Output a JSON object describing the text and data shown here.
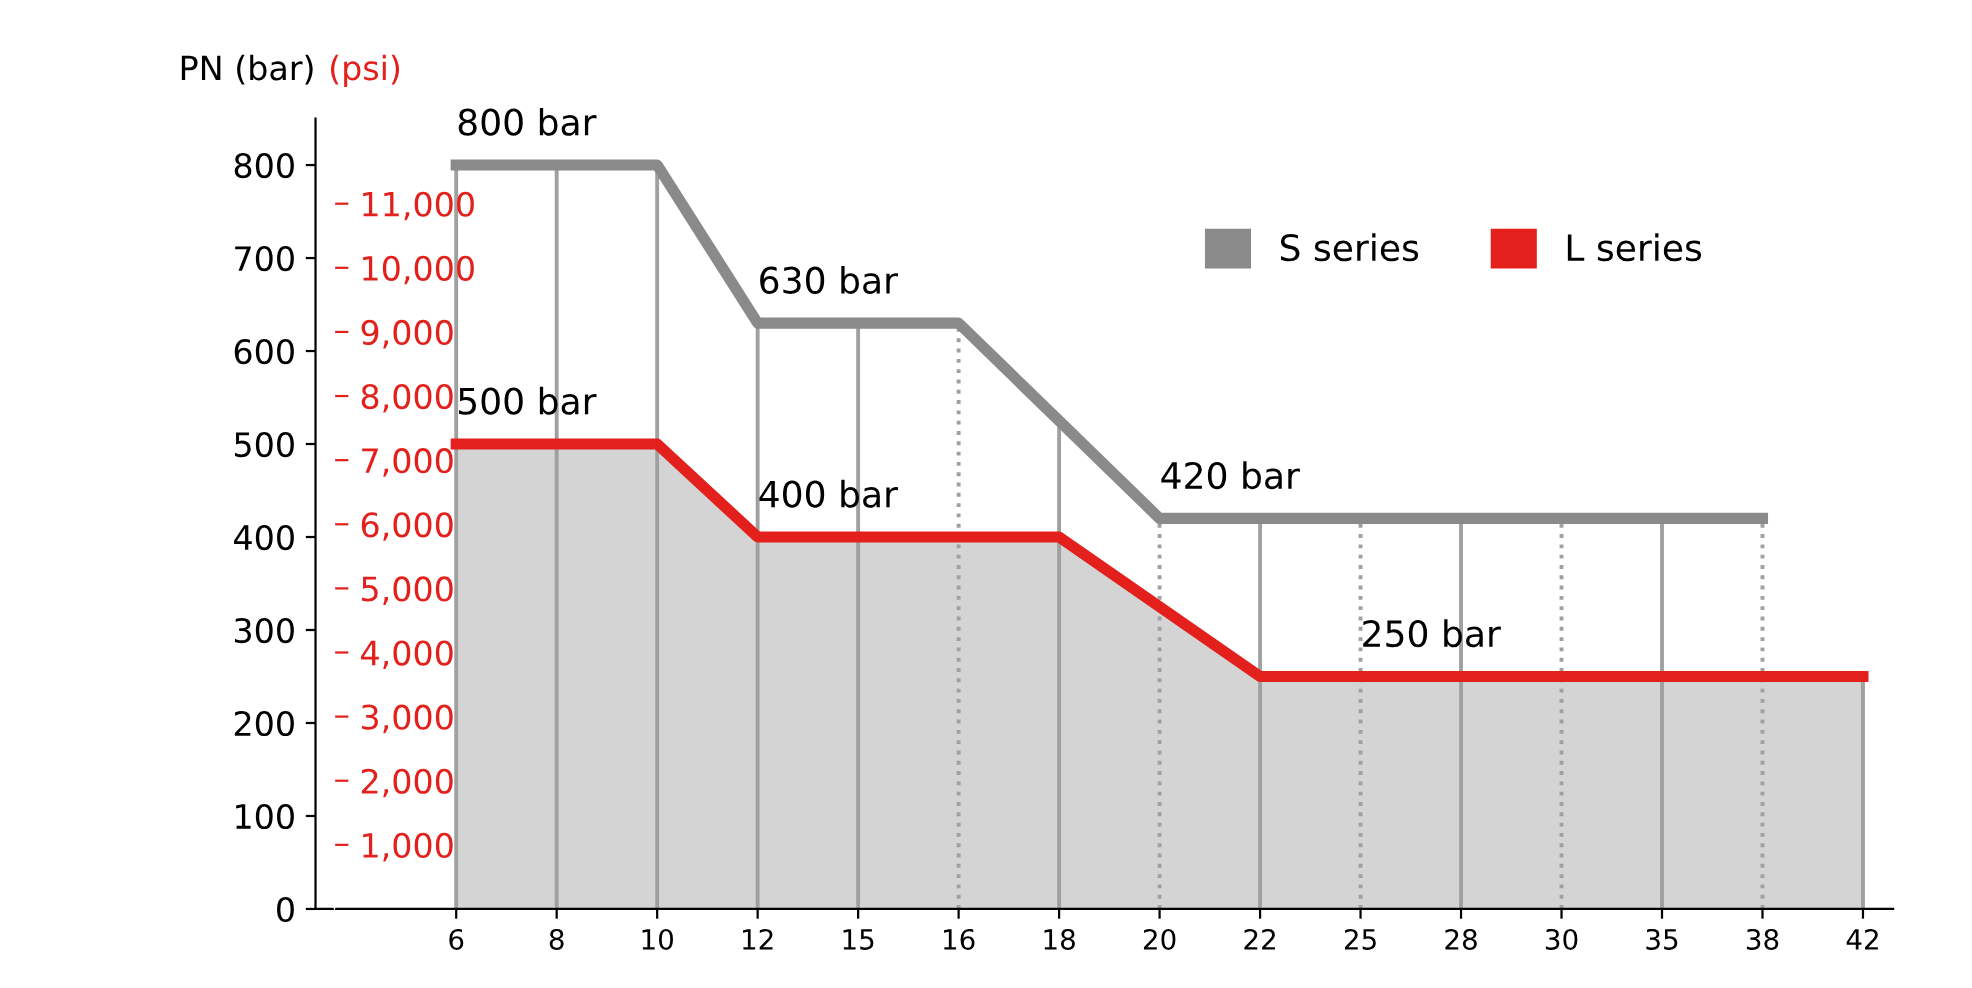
{
  "chart_data": {
    "type": "area",
    "ylabel": "PN (bar)",
    "y2label": "(psi)",
    "categories": [
      "6",
      "8",
      "10",
      "12",
      "15",
      "16",
      "18",
      "20",
      "22",
      "25",
      "28",
      "30",
      "35",
      "38",
      "42"
    ],
    "series": [
      {
        "name": "S series",
        "type": "line",
        "color": "#8a8a8a",
        "values": [
          800,
          800,
          800,
          630,
          630,
          630,
          525,
          420,
          420,
          420,
          420,
          420,
          420,
          420,
          null
        ]
      },
      {
        "name": "L series",
        "color": "#e3201b",
        "values": [
          500,
          500,
          500,
          400,
          400,
          400,
          400,
          325,
          250,
          250,
          250,
          250,
          250,
          250,
          250
        ]
      }
    ],
    "ylim": [
      0,
      850
    ],
    "yticks": [
      0,
      100,
      200,
      300,
      400,
      500,
      600,
      700,
      800
    ],
    "y2lim": [
      0,
      12328
    ],
    "y2ticks": [
      {
        "value": 1000,
        "label": "1,000"
      },
      {
        "value": 2000,
        "label": "2,000"
      },
      {
        "value": 3000,
        "label": "3,000"
      },
      {
        "value": 4000,
        "label": "4,000"
      },
      {
        "value": 5000,
        "label": "5,000"
      },
      {
        "value": 6000,
        "label": "6,000"
      },
      {
        "value": 7000,
        "label": "7,000"
      },
      {
        "value": 8000,
        "label": "8,000"
      },
      {
        "value": 9000,
        "label": "9,000"
      },
      {
        "value": 10000,
        "label": "10,000"
      },
      {
        "value": 11000,
        "label": "11,000"
      }
    ],
    "annotations": [
      {
        "text": "800 bar",
        "x": "6",
        "y": 800
      },
      {
        "text": "630 bar",
        "x": "12",
        "y": 630
      },
      {
        "text": "500 bar",
        "x": "6",
        "y": 500
      },
      {
        "text": "400 bar",
        "x": "12",
        "y": 400
      },
      {
        "text": "420 bar",
        "x": "20",
        "y": 420
      },
      {
        "text": "250 bar",
        "x": "25",
        "y": 250
      }
    ],
    "ref_lines": [
      {
        "axis": "x",
        "value": "6"
      },
      {
        "axis": "x",
        "value": "8"
      },
      {
        "axis": "x",
        "value": "10"
      },
      {
        "axis": "x",
        "value": "12"
      },
      {
        "axis": "x",
        "value": "15"
      },
      {
        "axis": "x",
        "value": "16",
        "line_style": "dotted"
      },
      {
        "axis": "x",
        "value": "18"
      },
      {
        "axis": "x",
        "value": "20",
        "line_style": "dotted"
      },
      {
        "axis": "x",
        "value": "22"
      },
      {
        "axis": "x",
        "value": "25",
        "line_style": "dotted"
      },
      {
        "axis": "x",
        "value": "28"
      },
      {
        "axis": "x",
        "value": "30",
        "line_style": "dotted"
      },
      {
        "axis": "x",
        "value": "35"
      },
      {
        "axis": "x",
        "value": "38",
        "line_style": "dotted"
      },
      {
        "axis": "x",
        "value": "42"
      }
    ],
    "legend": "top right",
    "grid": false,
    "marker": "none",
    "line_style": "solid"
  }
}
